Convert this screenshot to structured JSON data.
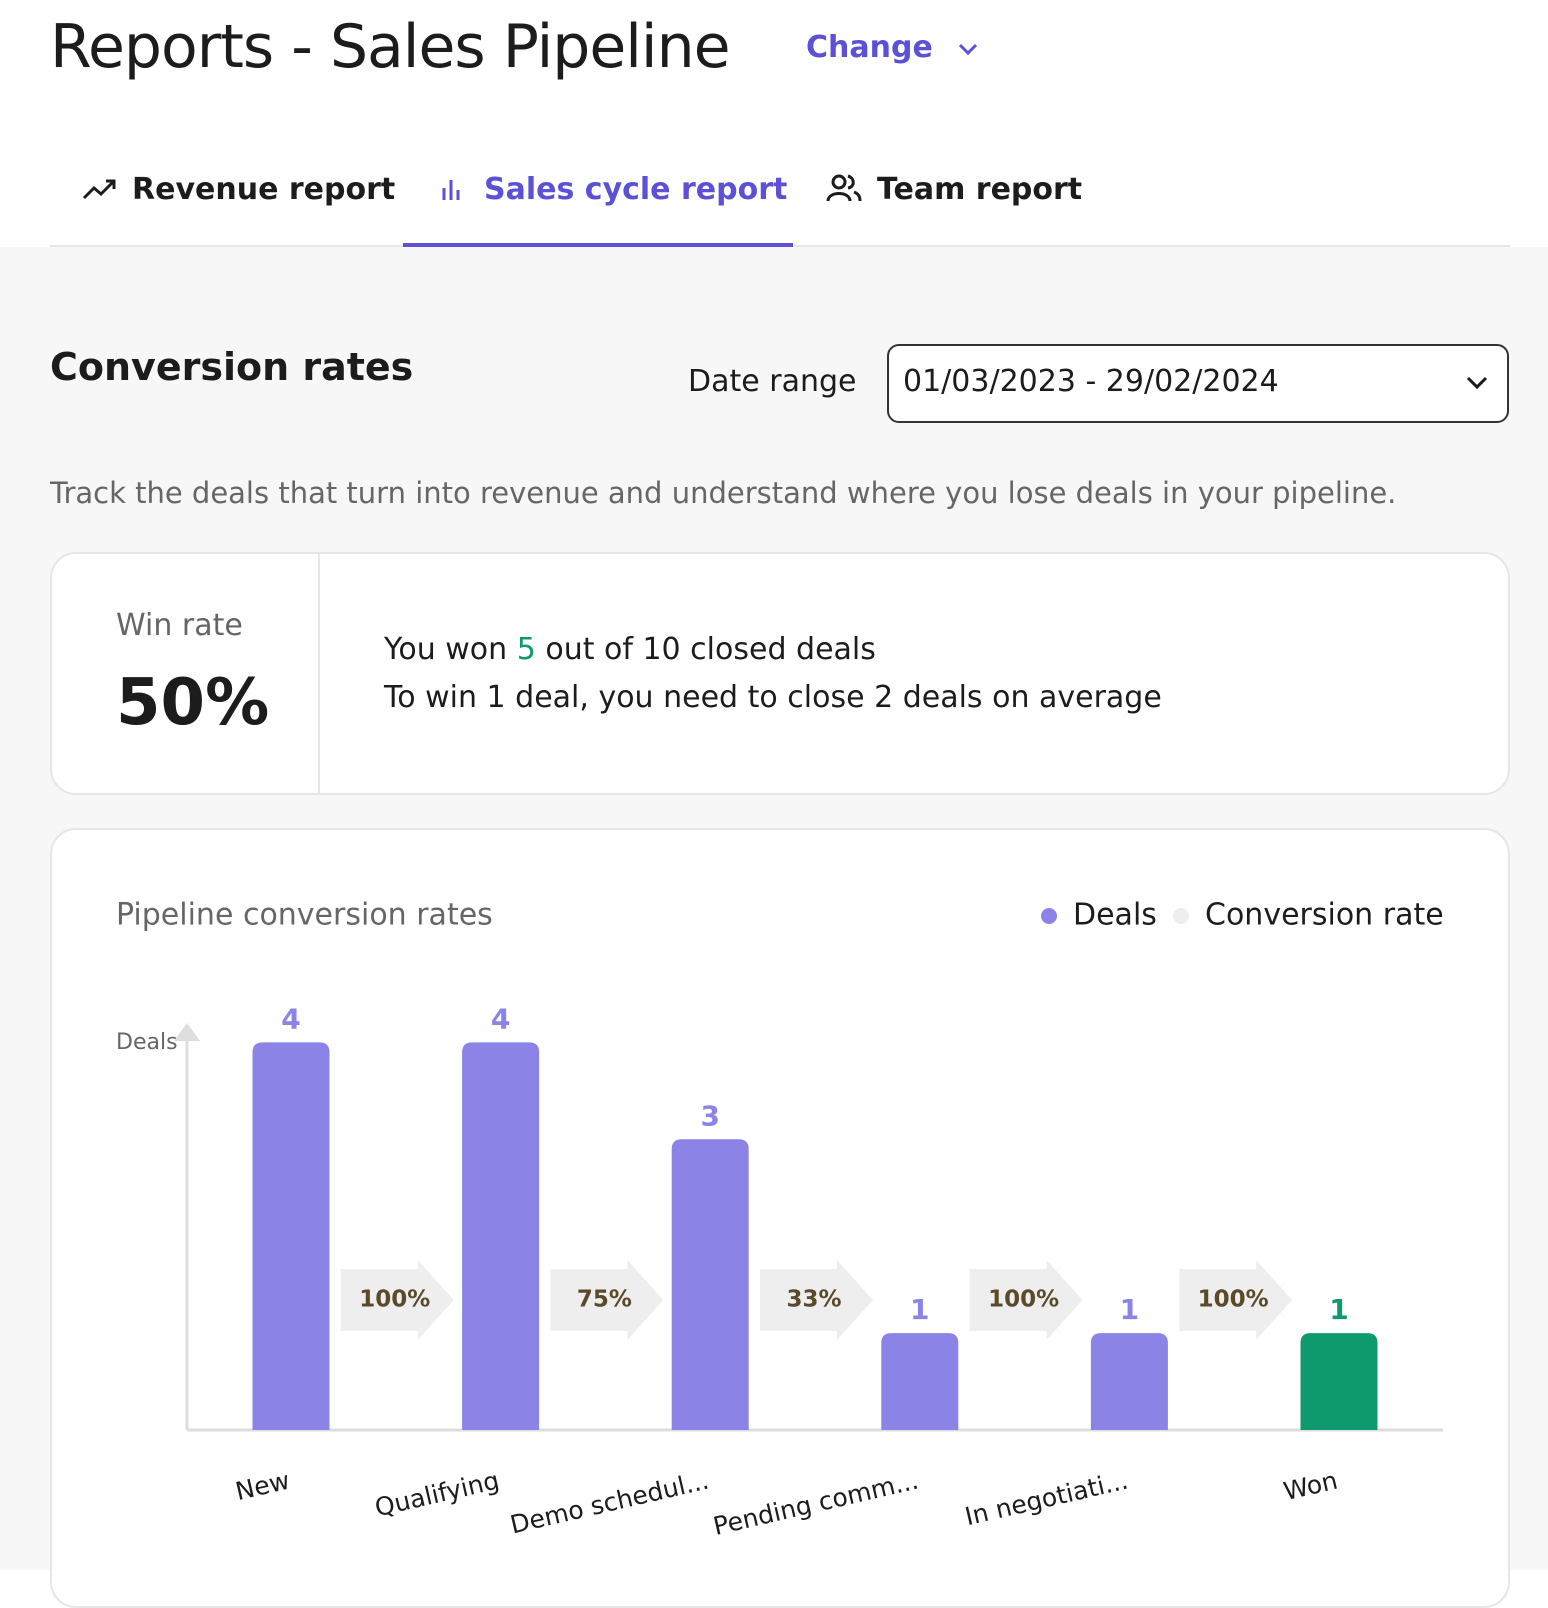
{
  "header": {
    "title": "Reports - Sales Pipeline",
    "change": "Change"
  },
  "tabs": [
    "Revenue report",
    "Sales cycle report",
    "Team report"
  ],
  "section": {
    "title": "Conversion rates",
    "date_range_label": "Date range",
    "date_range": "01/03/2023 - 29/02/2024",
    "description": "Track the deals that turn into revenue and understand where you lose deals in your pipeline."
  },
  "win_rate": {
    "label": "Win rate",
    "value": "50%",
    "won_prefix": "You won",
    "won_count": "5",
    "won_suffix": "out of 10 closed deals",
    "average": "To win 1 deal, you need to close 2 deals on average"
  },
  "chart_data": {
    "type": "bar",
    "title": "Pipeline conversion rates",
    "y_label": "Deals",
    "categories": [
      "New",
      "Qualifying",
      "Demo schedul...",
      "Pending comm...",
      "In negotiati...",
      "Won"
    ],
    "series": [
      {
        "name": "Deals",
        "color": "#8b84e6",
        "values": [
          4,
          4,
          3,
          1,
          1,
          1
        ],
        "bar_colors": [
          "#8b84e6",
          "#8b84e6",
          "#8b84e6",
          "#8b84e6",
          "#8b84e6",
          "#0e9a6e"
        ]
      },
      {
        "name": "Conversion rate",
        "color": "#eeeeee",
        "values": [
          null,
          100,
          75,
          33,
          100,
          100
        ],
        "value_labels": [
          null,
          "100%",
          "75%",
          "33%",
          "100%",
          "100%"
        ]
      }
    ],
    "ylim": [
      0,
      4.2
    ]
  }
}
